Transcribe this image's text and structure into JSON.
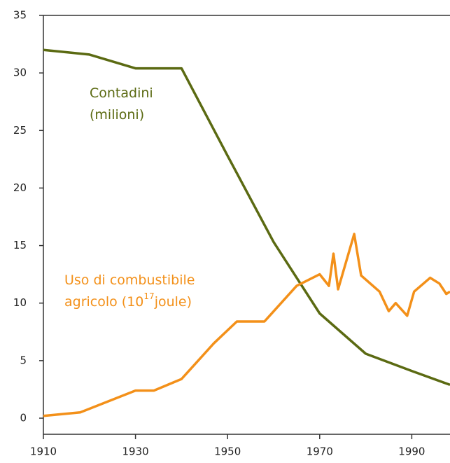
{
  "chart_data": {
    "type": "line",
    "x": [
      1910,
      1918,
      1920,
      1930,
      1934,
      1940,
      1947,
      1950,
      1952,
      1958,
      1960,
      1965,
      1970,
      1972,
      1973,
      1974,
      1977.5,
      1979,
      1980,
      1983,
      1985,
      1986.5,
      1989,
      1990,
      1990.5,
      1994,
      1996,
      1997.5,
      1998.3
    ],
    "series": [
      {
        "name": "Contadini",
        "label_lines": [
          "Contadini",
          "(milioni)"
        ],
        "color": "#5b6a12",
        "values": [
          32,
          null,
          31.6,
          30.4,
          null,
          30.4,
          null,
          22.8,
          null,
          null,
          15.3,
          null,
          9.1,
          null,
          null,
          null,
          null,
          null,
          5.6,
          null,
          null,
          null,
          null,
          4.1,
          null,
          null,
          null,
          null,
          2.9
        ]
      },
      {
        "name": "Uso di combustibile",
        "label_lines": [
          "Uso di combustibile",
          "agricolo (10"
        ],
        "superscript": "17",
        "suffix": "joule)",
        "color": "#f39019",
        "values": [
          0.2,
          0.5,
          null,
          2.4,
          2.4,
          3.4,
          6.5,
          null,
          8.4,
          8.4,
          null,
          11.5,
          12.5,
          11.5,
          14.3,
          11.2,
          16.0,
          12.4,
          null,
          11.0,
          9.3,
          10.0,
          8.9,
          null,
          11.0,
          12.2,
          11.7,
          10.8,
          11.0
        ]
      }
    ],
    "xlim": [
      1910,
      1998.3
    ],
    "xticks": [
      1910,
      1930,
      1950,
      1970,
      1990
    ],
    "ylim": [
      -1.4,
      35
    ],
    "yticks": [
      0,
      5,
      10,
      15,
      20,
      25,
      30,
      35
    ]
  }
}
